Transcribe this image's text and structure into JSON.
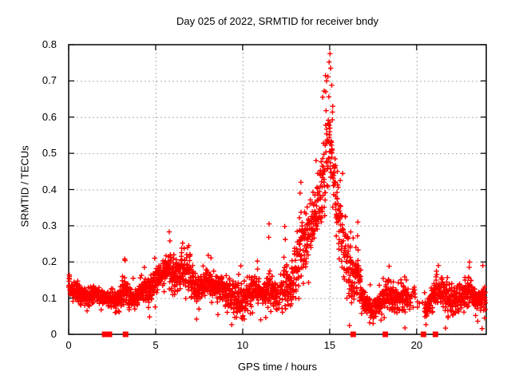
{
  "chart_data": {
    "type": "scatter",
    "title": "Day 025 of 2022, SRMTID for receiver bndy",
    "xlabel": "GPS time / hours",
    "ylabel": "SRMTID / TECUs",
    "xlim": [
      0,
      24
    ],
    "ylim": [
      0,
      0.8
    ],
    "xticks": [
      0,
      5,
      10,
      15,
      20
    ],
    "yticks": [
      0,
      0.1,
      0.2,
      0.3,
      0.4,
      0.5,
      0.6,
      0.7,
      0.8
    ],
    "grid": true,
    "grid_style": "dotted",
    "grid_color": "#b0b0b0",
    "marker": "plus",
    "marker_color": "#ff0000",
    "border_color": "#000000",
    "peak": {
      "hour": 15.0,
      "value": 0.775
    },
    "sample_interval_hours": 0.008333,
    "envelope": [
      [
        0.0,
        0.13,
        0.03
      ],
      [
        0.5,
        0.115,
        0.03
      ],
      [
        1.0,
        0.103,
        0.028
      ],
      [
        1.5,
        0.115,
        0.032
      ],
      [
        2.0,
        0.1,
        0.028
      ],
      [
        2.5,
        0.095,
        0.03
      ],
      [
        2.9,
        0.092,
        0.035
      ],
      [
        3.2,
        0.125,
        0.055
      ],
      [
        3.5,
        0.105,
        0.032
      ],
      [
        3.9,
        0.1,
        0.03
      ],
      [
        4.3,
        0.13,
        0.045
      ],
      [
        4.6,
        0.12,
        0.065
      ],
      [
        5.0,
        0.15,
        0.05
      ],
      [
        5.4,
        0.165,
        0.055
      ],
      [
        5.8,
        0.185,
        0.065
      ],
      [
        6.1,
        0.16,
        0.05
      ],
      [
        6.5,
        0.175,
        0.055
      ],
      [
        6.9,
        0.165,
        0.06
      ],
      [
        7.3,
        0.12,
        0.065
      ],
      [
        7.7,
        0.13,
        0.048
      ],
      [
        8.0,
        0.15,
        0.05
      ],
      [
        8.4,
        0.125,
        0.04
      ],
      [
        8.8,
        0.13,
        0.048
      ],
      [
        9.2,
        0.112,
        0.04
      ],
      [
        9.6,
        0.1,
        0.048
      ],
      [
        10.0,
        0.095,
        0.05
      ],
      [
        10.4,
        0.118,
        0.042
      ],
      [
        10.8,
        0.128,
        0.048
      ],
      [
        11.2,
        0.11,
        0.042
      ],
      [
        11.5,
        0.14,
        0.08
      ],
      [
        11.8,
        0.11,
        0.05
      ],
      [
        12.1,
        0.1,
        0.055
      ],
      [
        12.4,
        0.14,
        0.085
      ],
      [
        12.7,
        0.12,
        0.06
      ],
      [
        13.0,
        0.165,
        0.085
      ],
      [
        13.3,
        0.24,
        0.11
      ],
      [
        13.6,
        0.245,
        0.11
      ],
      [
        13.9,
        0.305,
        0.11
      ],
      [
        14.2,
        0.32,
        0.12
      ],
      [
        14.5,
        0.37,
        0.14
      ],
      [
        14.8,
        0.48,
        0.16
      ],
      [
        15.0,
        0.545,
        0.175
      ],
      [
        15.2,
        0.445,
        0.14
      ],
      [
        15.5,
        0.33,
        0.115
      ],
      [
        15.8,
        0.25,
        0.095
      ],
      [
        16.1,
        0.18,
        0.08
      ],
      [
        16.4,
        0.15,
        0.08
      ],
      [
        16.6,
        0.17,
        0.105
      ],
      [
        16.9,
        0.1,
        0.055
      ],
      [
        17.2,
        0.08,
        0.048
      ],
      [
        17.5,
        0.07,
        0.04
      ],
      [
        17.8,
        0.08,
        0.04
      ],
      [
        18.1,
        0.1,
        0.048
      ],
      [
        18.4,
        0.115,
        0.055
      ],
      [
        18.7,
        0.1,
        0.04
      ],
      [
        19.0,
        0.1,
        0.04
      ],
      [
        19.3,
        0.11,
        0.048
      ],
      [
        19.6,
        0.1,
        0.048
      ],
      [
        19.9,
        0.115,
        0.055
      ],
      [
        20.2,
        0.08,
        0.04
      ],
      [
        20.6,
        0.072,
        0.038
      ],
      [
        20.9,
        0.1,
        0.048
      ],
      [
        21.2,
        0.13,
        0.055
      ],
      [
        21.5,
        0.118,
        0.048
      ],
      [
        21.8,
        0.1,
        0.048
      ],
      [
        22.1,
        0.092,
        0.04
      ],
      [
        22.4,
        0.1,
        0.045
      ],
      [
        22.7,
        0.108,
        0.048
      ],
      [
        23.0,
        0.118,
        0.055
      ],
      [
        23.3,
        0.1,
        0.048
      ],
      [
        23.6,
        0.095,
        0.045
      ],
      [
        23.9,
        0.1,
        0.055
      ]
    ],
    "notable_points": [
      [
        15.02,
        0.775
      ],
      [
        14.97,
        0.752
      ],
      [
        15.06,
        0.735
      ],
      [
        14.9,
        0.712
      ],
      [
        14.82,
        0.7
      ],
      [
        14.68,
        0.672
      ],
      [
        15.12,
        0.688
      ],
      [
        14.6,
        0.655
      ],
      [
        15.18,
        0.63
      ],
      [
        13.35,
        0.42
      ],
      [
        13.3,
        0.39
      ],
      [
        16.62,
        0.31
      ],
      [
        16.6,
        0.272
      ],
      [
        11.52,
        0.305
      ],
      [
        11.5,
        0.268
      ],
      [
        12.42,
        0.298
      ],
      [
        12.45,
        0.262
      ],
      [
        5.78,
        0.283
      ],
      [
        5.82,
        0.258
      ],
      [
        3.22,
        0.208
      ],
      [
        23.02,
        0.185
      ],
      [
        18.42,
        0.188
      ],
      [
        8.02,
        0.218
      ],
      [
        10.85,
        0.202
      ],
      [
        21.25,
        0.19
      ],
      [
        4.35,
        0.185
      ],
      [
        6.55,
        0.252
      ],
      [
        6.9,
        0.245
      ],
      [
        7.35,
        0.042
      ],
      [
        9.95,
        0.045
      ],
      [
        10.1,
        0.042
      ],
      [
        17.3,
        0.032
      ],
      [
        17.5,
        0.03
      ],
      [
        4.65,
        0.048
      ],
      [
        2.9,
        0.062
      ],
      [
        0.05,
        0.16
      ],
      [
        23.8,
        0.19
      ],
      [
        23.9,
        0.045
      ]
    ],
    "zero_flag_hours": [
      2.07,
      2.34,
      3.27,
      16.35,
      18.2,
      20.39,
      21.08
    ],
    "density_regions": [
      [
        19.5,
        20.05,
        0.3
      ],
      [
        20.05,
        20.45,
        0.12
      ],
      [
        12.0,
        12.3,
        0.65
      ],
      [
        17.25,
        17.6,
        0.8
      ]
    ]
  }
}
